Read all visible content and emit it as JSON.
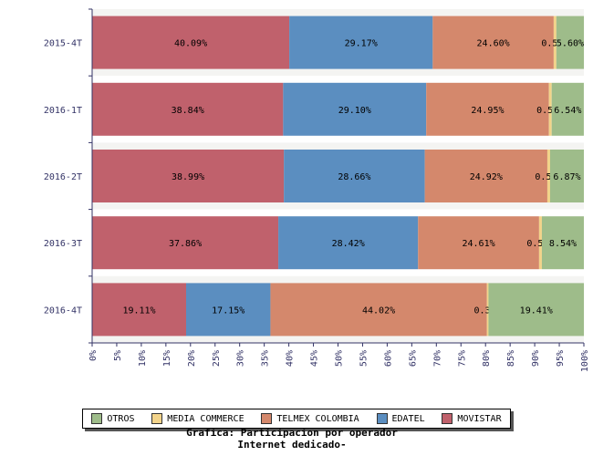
{
  "chart_data": {
    "type": "bar",
    "orientation": "horizontal",
    "stacked": true,
    "categories": [
      "2015-4T",
      "2016-1T",
      "2016-2T",
      "2016-3T",
      "2016-4T"
    ],
    "series": [
      {
        "name": "MOVISTAR",
        "color": "#c0616c",
        "values": [
          40.09,
          38.84,
          38.99,
          37.86,
          19.11
        ],
        "labels": [
          "40.09%",
          "38.84%",
          "38.99%",
          "37.86%",
          "19.11%"
        ]
      },
      {
        "name": "EDATEL",
        "color": "#5b8ec0",
        "values": [
          29.17,
          29.1,
          28.66,
          28.42,
          17.15
        ],
        "labels": [
          "29.17%",
          "29.10%",
          "28.66%",
          "28.42%",
          "17.15%"
        ]
      },
      {
        "name": "TELMEX COLOMBIA",
        "color": "#d4886c",
        "values": [
          24.6,
          24.95,
          24.92,
          24.61,
          44.02
        ],
        "labels": [
          "24.60%",
          "24.95%",
          "24.92%",
          "24.61%",
          "44.02%"
        ]
      },
      {
        "name": "MEDIA COMMERCE",
        "color": "#f2d38a",
        "values": [
          0.55,
          0.56,
          0.56,
          0.57,
          0.32
        ],
        "labels": [
          "0.55%",
          "0.56%",
          "0.56%",
          "0.57%",
          "0.32%"
        ]
      },
      {
        "name": "OTROS",
        "color": "#9ebc8a",
        "values": [
          5.6,
          6.54,
          6.87,
          8.54,
          19.41
        ],
        "labels": [
          "5.60%",
          "6.54%",
          "6.87%",
          "8.54%",
          "19.41%"
        ]
      }
    ],
    "xlim": [
      0,
      100
    ],
    "xticks": [
      "0%",
      "5%",
      "10%",
      "15%",
      "20%",
      "25%",
      "30%",
      "35%",
      "40%",
      "45%",
      "50%",
      "55%",
      "60%",
      "65%",
      "70%",
      "75%",
      "80%",
      "85%",
      "90%",
      "95%",
      "100%"
    ],
    "legend_order": [
      "OTROS",
      "MEDIA COMMERCE",
      "TELMEX COLOMBIA",
      "EDATEL",
      "MOVISTAR"
    ],
    "legend_position": "bottom",
    "title_line1": "Grafica: Participacion por operador",
    "title_line2": "Internet dedicado-"
  }
}
